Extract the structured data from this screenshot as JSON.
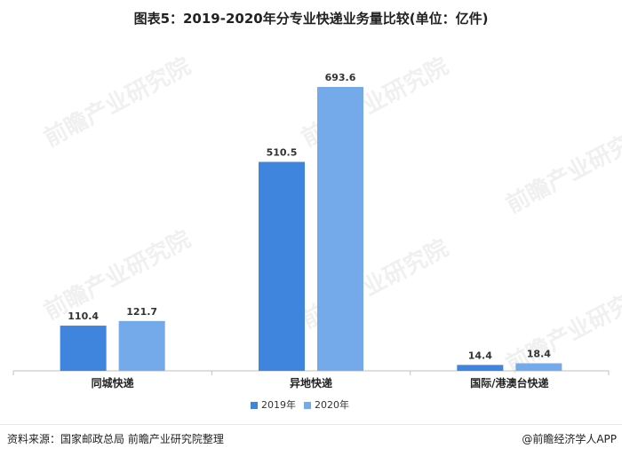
{
  "title": "图表5：2019-2020年分专业快递业务量比较(单位：亿件)",
  "source": "资料来源：国家邮政总局 前瞻产业研究院整理",
  "brand": "@前瞻经济学人APP",
  "watermark": "前瞻产业研究院",
  "colors": {
    "series_2019": "#3f85de",
    "series_2020": "#74aaea",
    "axis": "#bfbfbf",
    "label": "#333333"
  },
  "chart_data": {
    "type": "bar",
    "title": "图表5：2019-2020年分专业快递业务量比较(单位：亿件)",
    "categories": [
      "同城快递",
      "异地快递",
      "国际/港澳台快递"
    ],
    "series": [
      {
        "name": "2019年",
        "values": [
          110.4,
          510.5,
          14.4
        ]
      },
      {
        "name": "2020年",
        "values": [
          121.7,
          693.6,
          18.4
        ]
      }
    ],
    "ylim": [
      0,
      720
    ],
    "grid": false,
    "legend": "bottom"
  }
}
